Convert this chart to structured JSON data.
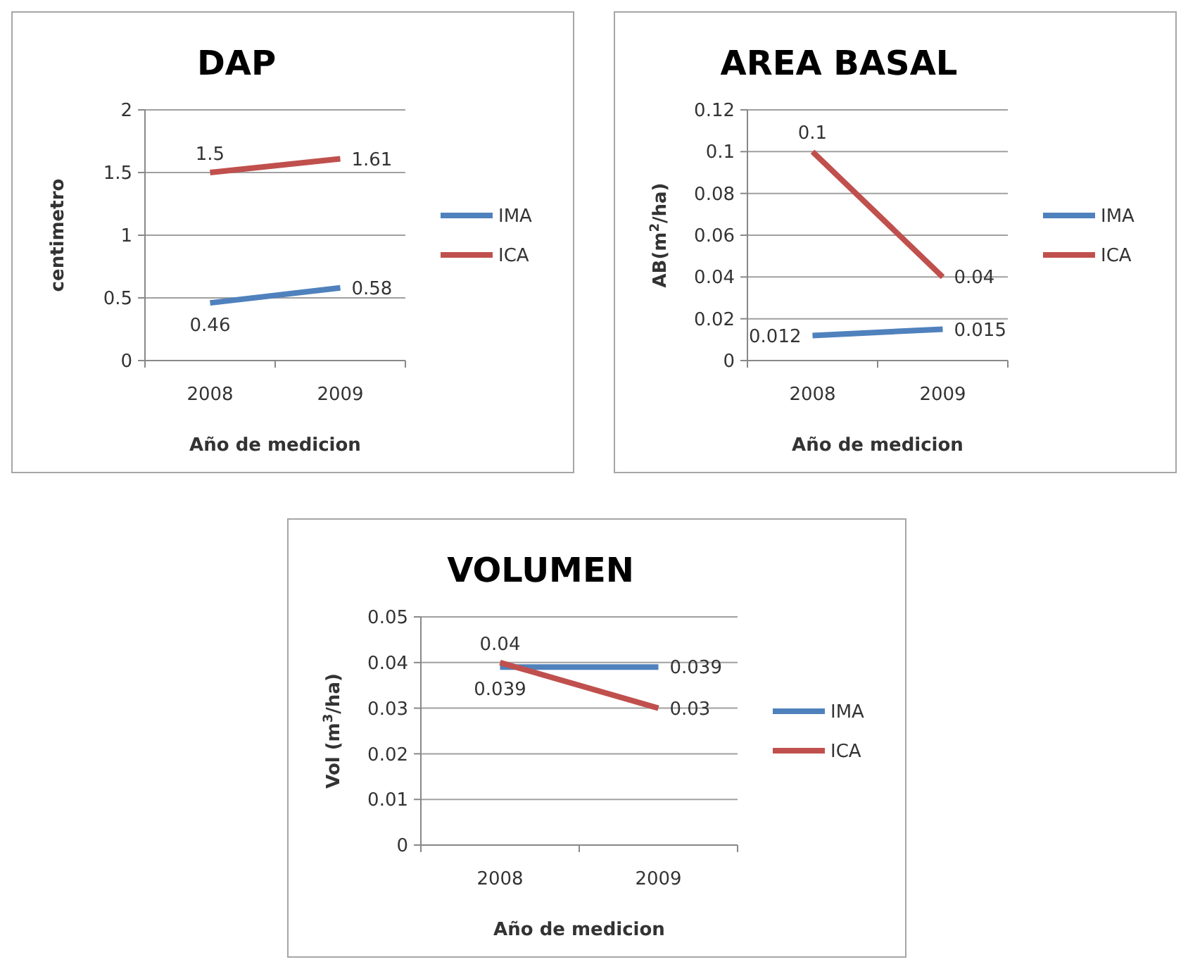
{
  "chart_data": [
    {
      "type": "line",
      "title": "DAP",
      "xlabel": "Año de medicion",
      "ylabel": "centimetro",
      "categories": [
        "2008",
        "2009"
      ],
      "series": [
        {
          "name": "IMA",
          "color": "#4f81bd",
          "values": [
            0.46,
            0.58
          ]
        },
        {
          "name": "ICA",
          "color": "#c0504d",
          "values": [
            1.5,
            1.61
          ]
        }
      ],
      "ylim": [
        0,
        2
      ],
      "yticks": [
        0,
        {
          "value": 0.5,
          "label": "0.5"
        },
        1,
        {
          "value": 1.5,
          "label": "1.5"
        },
        2
      ],
      "grid": "y",
      "legend": "right",
      "data_labels": true
    },
    {
      "type": "line",
      "title": "AREA BASAL",
      "xlabel": "Año de medicion",
      "ylabel": "AB(m$^{2}$/ha)",
      "categories": [
        "2008",
        "2009"
      ],
      "series": [
        {
          "name": "IMA",
          "color": "#4f81bd",
          "values": [
            0.012,
            0.015
          ]
        },
        {
          "name": "ICA",
          "color": "#c0504d",
          "values": [
            0.1,
            0.04
          ]
        }
      ],
      "ylim": [
        0,
        0.12
      ],
      "yticks": [
        0,
        0.02,
        0.04,
        0.06,
        0.08,
        0.1,
        0.12
      ],
      "grid": "y",
      "legend": "right",
      "data_labels": true
    },
    {
      "type": "line",
      "title": "VOLUMEN",
      "xlabel": "Año de medicion",
      "ylabel": "Vol (m$^{3}$/ha)",
      "categories": [
        "2008",
        "2009"
      ],
      "series": [
        {
          "name": "IMA",
          "color": "#4f81bd",
          "values": [
            0.039,
            0.039
          ]
        },
        {
          "name": "ICA",
          "color": "#c0504d",
          "values": [
            0.04,
            0.03
          ]
        }
      ],
      "ylim": [
        0,
        0.05
      ],
      "yticks": [
        0,
        0.01,
        0.02,
        0.03,
        0.04,
        0.05
      ],
      "grid": "y",
      "legend": "right",
      "data_labels": true
    }
  ]
}
